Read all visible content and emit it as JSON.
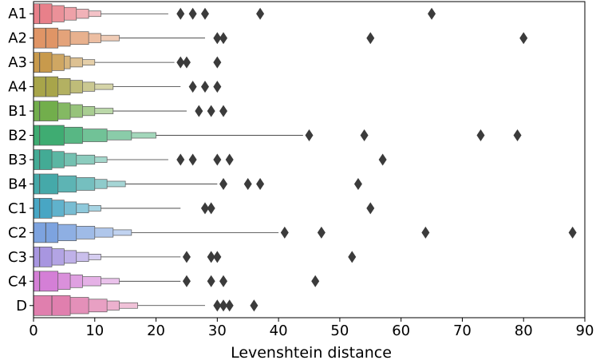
{
  "chart_data": {
    "type": "boxen",
    "orientation": "horizontal",
    "title": "",
    "xlabel": "Levenshtein distance",
    "ylabel": "",
    "xlim": [
      0,
      90
    ],
    "xticks": [
      0,
      10,
      20,
      30,
      40,
      50,
      60,
      70,
      80,
      90
    ],
    "grid": false,
    "categories": [
      "A1",
      "A2",
      "A3",
      "A4",
      "B1",
      "B2",
      "B3",
      "B4",
      "C1",
      "C2",
      "C3",
      "C4",
      "D"
    ],
    "series": [
      {
        "name": "A1",
        "color": "#e8808a",
        "median": 1,
        "levels": [
          [
            0,
            3
          ],
          [
            0,
            5
          ],
          [
            0,
            7
          ],
          [
            0,
            9
          ],
          [
            0,
            11
          ]
        ],
        "whisker": 22,
        "outliers": [
          24,
          26,
          28,
          37,
          65
        ]
      },
      {
        "name": "A2",
        "color": "#e09566",
        "median": 2,
        "levels": [
          [
            0,
            4
          ],
          [
            0,
            6
          ],
          [
            0,
            9
          ],
          [
            0,
            11
          ],
          [
            0,
            14
          ]
        ],
        "whisker": 28,
        "outliers": [
          30,
          31,
          55,
          80
        ]
      },
      {
        "name": "A3",
        "color": "#c89a4c",
        "median": 1,
        "levels": [
          [
            0,
            3
          ],
          [
            0,
            5
          ],
          [
            0,
            6
          ],
          [
            0,
            8
          ],
          [
            0,
            10
          ]
        ],
        "whisker": 23,
        "outliers": [
          24,
          25,
          30
        ]
      },
      {
        "name": "A4",
        "color": "#a8a54a",
        "median": 2,
        "levels": [
          [
            0,
            4
          ],
          [
            0,
            6
          ],
          [
            0,
            8
          ],
          [
            0,
            10
          ],
          [
            0,
            13
          ]
        ],
        "whisker": 24,
        "outliers": [
          26,
          28,
          30
        ]
      },
      {
        "name": "B1",
        "color": "#72ae4c",
        "median": 1,
        "levels": [
          [
            0,
            4
          ],
          [
            0,
            6
          ],
          [
            0,
            8
          ],
          [
            0,
            10
          ],
          [
            0,
            13
          ]
        ],
        "whisker": 25,
        "outliers": [
          27,
          29,
          31
        ]
      },
      {
        "name": "B2",
        "color": "#3fac72",
        "median": 1,
        "levels": [
          [
            0,
            5
          ],
          [
            0,
            8
          ],
          [
            0,
            12
          ],
          [
            0,
            16
          ],
          [
            0,
            20
          ]
        ],
        "whisker": 44,
        "outliers": [
          45,
          54,
          73,
          79
        ]
      },
      {
        "name": "B3",
        "color": "#43ab95",
        "median": 1,
        "levels": [
          [
            0,
            3
          ],
          [
            0,
            5
          ],
          [
            0,
            7
          ],
          [
            0,
            10
          ],
          [
            0,
            12
          ]
        ],
        "whisker": 22,
        "outliers": [
          24,
          26,
          30,
          32,
          57
        ]
      },
      {
        "name": "B4",
        "color": "#45a9a9",
        "median": 1,
        "levels": [
          [
            0,
            4
          ],
          [
            0,
            7
          ],
          [
            0,
            10
          ],
          [
            0,
            12
          ],
          [
            0,
            15
          ]
        ],
        "whisker": 30,
        "outliers": [
          31,
          35,
          37,
          53
        ]
      },
      {
        "name": "C1",
        "color": "#48a6c4",
        "median": 1,
        "levels": [
          [
            0,
            3
          ],
          [
            0,
            5
          ],
          [
            0,
            7
          ],
          [
            0,
            9
          ],
          [
            0,
            11
          ]
        ],
        "whisker": 24,
        "outliers": [
          28,
          29,
          55
        ]
      },
      {
        "name": "C2",
        "color": "#7da3df",
        "median": 2,
        "levels": [
          [
            0,
            4
          ],
          [
            0,
            7
          ],
          [
            0,
            10
          ],
          [
            0,
            13
          ],
          [
            0,
            16
          ]
        ],
        "whisker": 40,
        "outliers": [
          41,
          47,
          64,
          88
        ]
      },
      {
        "name": "C3",
        "color": "#a896e0",
        "median": 1,
        "levels": [
          [
            0,
            3
          ],
          [
            0,
            5
          ],
          [
            0,
            7
          ],
          [
            0,
            9
          ],
          [
            0,
            11
          ]
        ],
        "whisker": 24,
        "outliers": [
          25,
          29,
          30,
          52
        ]
      },
      {
        "name": "C4",
        "color": "#d47fd6",
        "median": 1,
        "levels": [
          [
            0,
            4
          ],
          [
            0,
            6
          ],
          [
            0,
            8
          ],
          [
            0,
            11
          ],
          [
            0,
            14
          ]
        ],
        "whisker": 24,
        "outliers": [
          25,
          29,
          31,
          46
        ]
      },
      {
        "name": "D",
        "color": "#e07fae",
        "median": 3,
        "levels": [
          [
            0,
            6
          ],
          [
            0,
            9
          ],
          [
            0,
            12
          ],
          [
            0,
            14
          ],
          [
            0,
            17
          ]
        ],
        "whisker": 28,
        "outliers": [
          30,
          31,
          32,
          36
        ]
      }
    ]
  }
}
